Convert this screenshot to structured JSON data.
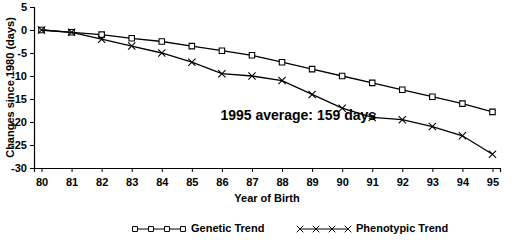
{
  "chart_data": {
    "type": "line",
    "x_label": "Year of Birth",
    "y_label": "Changes since 1980 (days)",
    "annotation": "1995 average: 159 days",
    "x": [
      80,
      81,
      82,
      83,
      84,
      85,
      86,
      87,
      88,
      89,
      90,
      91,
      92,
      93,
      94,
      95
    ],
    "xlim": [
      79.75,
      95.25
    ],
    "xticks": [
      80,
      81,
      82,
      83,
      84,
      85,
      86,
      87,
      88,
      89,
      90,
      91,
      92,
      93,
      94,
      95
    ],
    "ylim": [
      -30,
      5
    ],
    "yticks": [
      5,
      0,
      -5,
      -10,
      -15,
      -20,
      -25,
      -30
    ],
    "grid": false,
    "legend": "bottom",
    "series": [
      {
        "name": "Genetic Trend",
        "color": "#000000",
        "marker": "square",
        "line_style": "solid",
        "values": [
          0,
          -0.5,
          -1,
          -1.8,
          -2.5,
          -3.5,
          -4.5,
          -5.5,
          -7,
          -8.5,
          -10,
          -11.5,
          -13,
          -14.5,
          -16,
          -17.8
        ]
      },
      {
        "name": "Phenotypic Trend",
        "color": "#000000",
        "marker": "x",
        "line_style": "solid",
        "values": [
          0,
          -0.5,
          -2,
          -3.5,
          -5,
          -7,
          -9.5,
          -10,
          -11,
          -14,
          -17,
          -19,
          -19.5,
          -21,
          -23,
          -27
        ]
      }
    ]
  }
}
